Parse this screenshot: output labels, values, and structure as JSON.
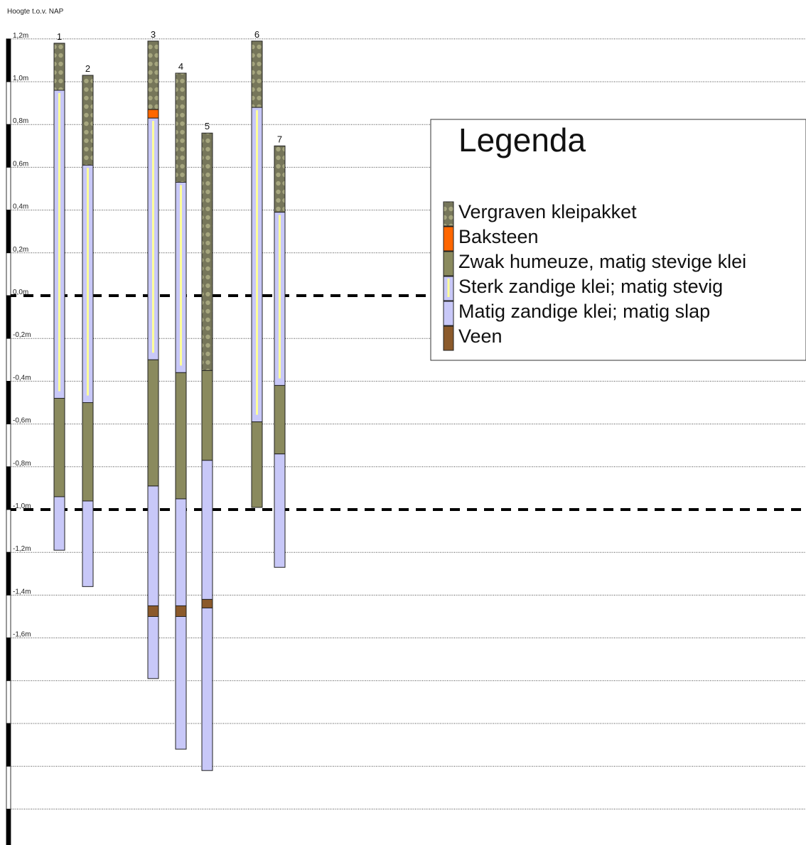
{
  "axis": {
    "title": "Hoogte t.o.v. NAP",
    "unit": "m",
    "ticks": [
      {
        "value": 1.2,
        "label": "1,2m"
      },
      {
        "value": 1.0,
        "label": "1,0m"
      },
      {
        "value": 0.8,
        "label": "0,8m"
      },
      {
        "value": 0.6,
        "label": "0,6m"
      },
      {
        "value": 0.4,
        "label": "0,4m"
      },
      {
        "value": 0.2,
        "label": "0,2m"
      },
      {
        "value": 0.0,
        "label": "0,0m"
      },
      {
        "value": -0.2,
        "label": "-0,2m"
      },
      {
        "value": -0.4,
        "label": "-0,4m"
      },
      {
        "value": -0.6,
        "label": "-0,6m"
      },
      {
        "value": -0.8,
        "label": "-0,8m"
      },
      {
        "value": -1.0,
        "label": "-1,0m"
      },
      {
        "value": -1.2,
        "label": "-1,2m"
      },
      {
        "value": -1.4,
        "label": "-1,4m"
      },
      {
        "value": -1.6,
        "label": "-1,6m"
      },
      {
        "value": -1.8,
        "label": ""
      },
      {
        "value": -2.0,
        "label": ""
      },
      {
        "value": -2.2,
        "label": ""
      },
      {
        "value": -2.4,
        "label": ""
      }
    ],
    "dashed_reference_lines": [
      0.0,
      -1.0
    ],
    "range": [
      -2.45,
      1.2
    ]
  },
  "legend": {
    "title": "Legenda",
    "items": [
      {
        "key": "vergraven",
        "label": "Vergraven kleipakket",
        "color": "#7a7a52",
        "dot_color": "#a8a87a",
        "pattern": "dots"
      },
      {
        "key": "baksteen",
        "label": "Baksteen",
        "color": "#ff6600",
        "pattern": "solid"
      },
      {
        "key": "humeuze",
        "label": "Zwak humeuze, matig stevige klei",
        "color": "#8a8a5e",
        "pattern": "solid"
      },
      {
        "key": "sterk_zandig",
        "label": "Sterk zandige klei; matig stevig",
        "color": "#c8c8f8",
        "stripe_color": "#ffff99",
        "pattern": "stripe"
      },
      {
        "key": "matig_zandig",
        "label": "Matig zandige klei; matig slap",
        "color": "#c8c8f8",
        "pattern": "solid"
      },
      {
        "key": "veen",
        "label": "Veen",
        "color": "#8b5a2b",
        "pattern": "solid"
      }
    ]
  },
  "chart_data": {
    "type": "borehole_profile",
    "columns": [
      {
        "id": "1",
        "label": "1",
        "layers": [
          {
            "type": "vergraven",
            "top": 1.18,
            "bottom": 0.96
          },
          {
            "type": "sterk_zandig",
            "top": 0.96,
            "bottom": -0.48
          },
          {
            "type": "humeuze",
            "top": -0.48,
            "bottom": -0.94
          },
          {
            "type": "matig_zandig",
            "top": -0.94,
            "bottom": -1.19
          }
        ]
      },
      {
        "id": "2",
        "label": "2",
        "layers": [
          {
            "type": "vergraven",
            "top": 1.03,
            "bottom": 0.61
          },
          {
            "type": "sterk_zandig",
            "top": 0.61,
            "bottom": -0.5
          },
          {
            "type": "humeuze",
            "top": -0.5,
            "bottom": -0.96
          },
          {
            "type": "matig_zandig",
            "top": -0.96,
            "bottom": -1.36
          }
        ]
      },
      {
        "id": "3",
        "label": "3",
        "layers": [
          {
            "type": "vergraven",
            "top": 1.19,
            "bottom": 0.87
          },
          {
            "type": "baksteen",
            "top": 0.87,
            "bottom": 0.83
          },
          {
            "type": "sterk_zandig",
            "top": 0.83,
            "bottom": -0.3
          },
          {
            "type": "humeuze",
            "top": -0.3,
            "bottom": -0.89
          },
          {
            "type": "matig_zandig",
            "top": -0.89,
            "bottom": -1.45
          },
          {
            "type": "veen",
            "top": -1.45,
            "bottom": -1.5
          },
          {
            "type": "matig_zandig",
            "top": -1.5,
            "bottom": -1.79
          }
        ]
      },
      {
        "id": "4",
        "label": "4",
        "layers": [
          {
            "type": "vergraven",
            "top": 1.04,
            "bottom": 0.53
          },
          {
            "type": "sterk_zandig",
            "top": 0.53,
            "bottom": -0.36
          },
          {
            "type": "humeuze",
            "top": -0.36,
            "bottom": -0.95
          },
          {
            "type": "matig_zandig",
            "top": -0.95,
            "bottom": -1.45
          },
          {
            "type": "veen",
            "top": -1.45,
            "bottom": -1.5
          },
          {
            "type": "matig_zandig",
            "top": -1.5,
            "bottom": -2.12
          }
        ]
      },
      {
        "id": "5",
        "label": "5",
        "layers": [
          {
            "type": "vergraven",
            "top": 0.76,
            "bottom": -0.35
          },
          {
            "type": "humeuze",
            "top": -0.35,
            "bottom": -0.77
          },
          {
            "type": "matig_zandig",
            "top": -0.77,
            "bottom": -1.42
          },
          {
            "type": "veen",
            "top": -1.42,
            "bottom": -1.46
          },
          {
            "type": "matig_zandig",
            "top": -1.46,
            "bottom": -2.22
          }
        ]
      },
      {
        "id": "6",
        "label": "6",
        "layers": [
          {
            "type": "vergraven",
            "top": 1.19,
            "bottom": 0.88
          },
          {
            "type": "sterk_zandig",
            "top": 0.88,
            "bottom": -0.59
          },
          {
            "type": "humeuze",
            "top": -0.59,
            "bottom": -0.99
          }
        ]
      },
      {
        "id": "7",
        "label": "7",
        "layers": [
          {
            "type": "vergraven",
            "top": 0.7,
            "bottom": 0.39
          },
          {
            "type": "sterk_zandig",
            "top": 0.39,
            "bottom": -0.42
          },
          {
            "type": "humeuze",
            "top": -0.42,
            "bottom": -0.74
          },
          {
            "type": "matig_zandig",
            "top": -0.74,
            "bottom": -1.27
          }
        ]
      }
    ]
  }
}
